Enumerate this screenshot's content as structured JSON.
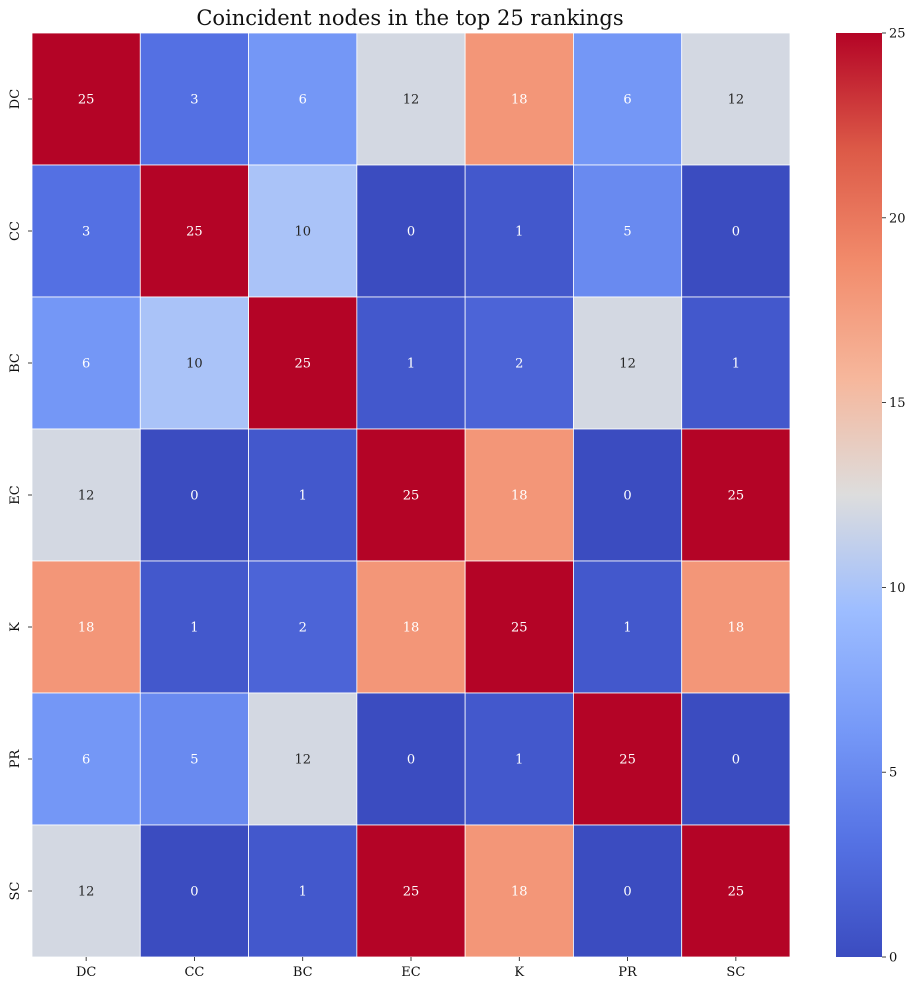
{
  "chart_data": {
    "type": "heatmap",
    "title": "Coincident nodes in the top 25 rankings",
    "x_labels": [
      "DC",
      "CC",
      "BC",
      "EC",
      "K",
      "PR",
      "SC"
    ],
    "y_labels": [
      "DC",
      "CC",
      "BC",
      "EC",
      "K",
      "PR",
      "SC"
    ],
    "values": [
      [
        25,
        3,
        6,
        12,
        18,
        6,
        12
      ],
      [
        3,
        25,
        10,
        0,
        1,
        5,
        0
      ],
      [
        6,
        10,
        25,
        1,
        2,
        12,
        1
      ],
      [
        12,
        0,
        1,
        25,
        18,
        0,
        25
      ],
      [
        18,
        1,
        2,
        18,
        25,
        1,
        18
      ],
      [
        6,
        5,
        12,
        0,
        1,
        25,
        0
      ],
      [
        12,
        0,
        1,
        25,
        18,
        0,
        25
      ]
    ],
    "colormap": "coolwarm",
    "vmin": 0,
    "vmax": 25,
    "colorbar_ticks": [
      0,
      5,
      10,
      15,
      20,
      25
    ],
    "annotate": true
  }
}
